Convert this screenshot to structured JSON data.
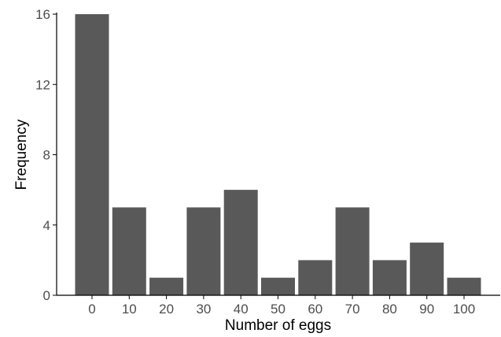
{
  "chart_data": {
    "type": "bar",
    "title": "",
    "xlabel": "Number of eggs",
    "ylabel": "Frequency",
    "categories": [
      "0",
      "10",
      "20",
      "30",
      "40",
      "50",
      "60",
      "70",
      "80",
      "90",
      "100"
    ],
    "values": [
      16,
      5,
      1,
      5,
      6,
      1,
      2,
      5,
      2,
      3,
      1
    ],
    "ylim": [
      0,
      16
    ],
    "yticks": [
      0,
      4,
      8,
      12,
      16
    ],
    "grid": false,
    "legend": "none",
    "bar_color": "#595959",
    "axis_color": "#000000",
    "tick_label_color": "#4d4d4d"
  }
}
